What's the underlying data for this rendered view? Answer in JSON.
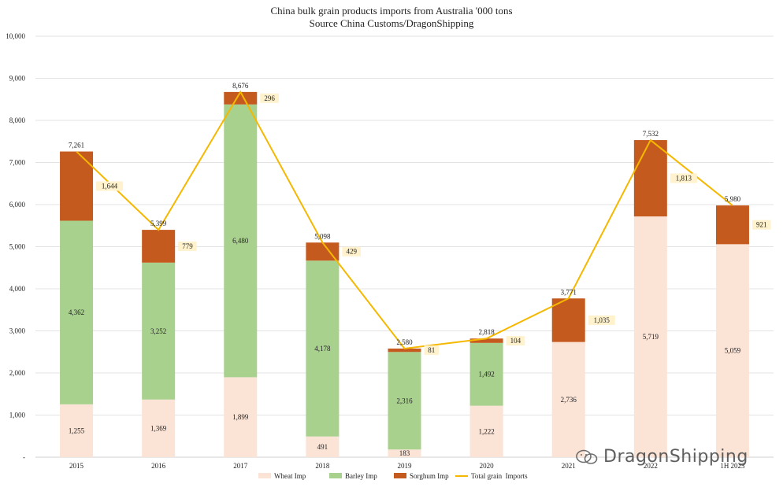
{
  "chart_data": {
    "type": "bar",
    "stacked": true,
    "title": "China bulk grain products imports from Australia '000 tons",
    "subtitle": "Source China Customs/DragonShipping",
    "categories": [
      "2015",
      "2016",
      "2017",
      "2018",
      "2019",
      "2020",
      "2021",
      "2022",
      "1H 2023"
    ],
    "ylim": [
      0,
      10000
    ],
    "yticks": [
      "-",
      "1,000",
      "2,000",
      "3,000",
      "4,000",
      "5,000",
      "6,000",
      "7,000",
      "8,000",
      "9,000",
      "10,000"
    ],
    "grid": true,
    "legend_position": "bottom",
    "series": [
      {
        "name": "Wheat Imp",
        "color": "#FBE3D6",
        "values": [
          1255,
          1369,
          1899,
          491,
          183,
          1222,
          2736,
          5719,
          5059
        ],
        "labels": [
          "1,255",
          "1,369",
          "1,899",
          "491",
          "183",
          "1,222",
          "2,736",
          "5,719",
          "5,059"
        ]
      },
      {
        "name": "Barley Imp",
        "color": "#A9D18E",
        "values": [
          4362,
          3252,
          6480,
          4178,
          2316,
          1492,
          0,
          0,
          0
        ],
        "labels": [
          "4,362",
          "3,252",
          "6,480",
          "4,178",
          "2,316",
          "1,492",
          "",
          "",
          ""
        ]
      },
      {
        "name": "Sorghum Imp",
        "color": "#C55A1E",
        "values": [
          1644,
          779,
          296,
          429,
          81,
          104,
          1035,
          1813,
          921
        ],
        "labels": [
          "1,644",
          "779",
          "296",
          "429",
          "81",
          "104",
          "1,035",
          "1,813",
          "921"
        ]
      },
      {
        "name": "Total grain  Imports",
        "type": "line",
        "color": "#F5B800",
        "values": [
          7261,
          5399,
          8676,
          5098,
          2580,
          2818,
          3771,
          7532,
          5980
        ],
        "labels": [
          "7,261",
          "5,399",
          "8,676",
          "5,098",
          "2,580",
          "2,818",
          "3,771",
          "7,532",
          "5,980"
        ]
      }
    ]
  },
  "watermark": {
    "text": "DragonShipping"
  }
}
